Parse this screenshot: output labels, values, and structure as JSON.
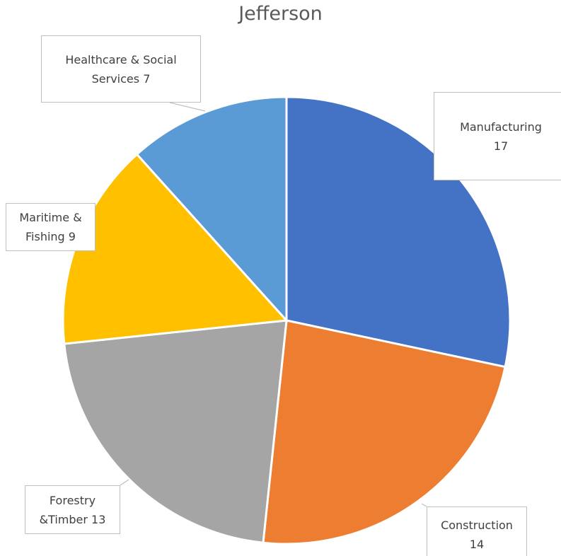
{
  "chart_data": {
    "type": "pie",
    "title": "Jefferson",
    "categories": [
      "Manufacturing",
      "Construction",
      "Forestry &Timber",
      "Maritime & Fishing",
      "Healthcare & Social Services"
    ],
    "values": [
      17,
      14,
      13,
      9,
      7
    ],
    "colors": [
      "#4472c4",
      "#ed7d31",
      "#a5a5a5",
      "#ffc000",
      "#5b9bd5"
    ]
  }
}
